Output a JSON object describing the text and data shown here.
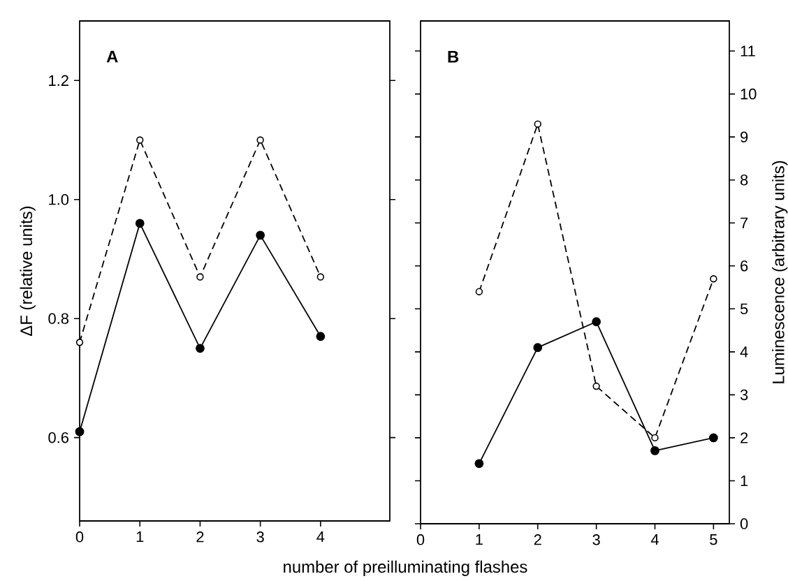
{
  "chart_data": [
    {
      "type": "line",
      "xlabel": "number of preilluminating flashes",
      "ylabel": "ΔF (relative units)",
      "annotations": [
        "A"
      ],
      "x": [
        0,
        1,
        2,
        3,
        4
      ],
      "xlim": [
        0,
        5.15
      ],
      "ylim": [
        0.46,
        1.3
      ],
      "xticks": [
        0,
        1,
        2,
        3,
        4
      ],
      "yticks": [
        0.6,
        0.8,
        {
          "value": 1.0,
          "label": "1.0"
        },
        1.2
      ],
      "series": [
        {
          "color": "#000000",
          "marker": "circle",
          "line_style": "solid",
          "values": [
            0.61,
            0.96,
            0.75,
            0.94,
            0.77
          ]
        },
        {
          "color": "#000000",
          "marker": "circle",
          "line_style": "dashed",
          "values": [
            0.76,
            1.1,
            0.87,
            1.1,
            0.87
          ]
        }
      ]
    },
    {
      "type": "line",
      "ylabel": "Luminescence (arbitrary units)",
      "annotations": [
        "B"
      ],
      "x": [
        1,
        2,
        3,
        4,
        5
      ],
      "xlim": [
        0,
        5.27
      ],
      "ylim": [
        0,
        11.7
      ],
      "xticks": [
        0,
        1,
        2,
        3,
        4,
        5
      ],
      "yticks": [
        0,
        1,
        2,
        3,
        4,
        5,
        6,
        7,
        8,
        9,
        10,
        11
      ],
      "series": [
        {
          "color": "#000000",
          "marker": "circle",
          "line_style": "solid",
          "values": [
            1.4,
            4.1,
            4.7,
            1.7,
            2.0
          ]
        },
        {
          "color": "#000000",
          "marker": "circle",
          "line_style": "dashed",
          "values": [
            5.4,
            9.3,
            3.2,
            2.0,
            5.7
          ]
        }
      ]
    }
  ]
}
